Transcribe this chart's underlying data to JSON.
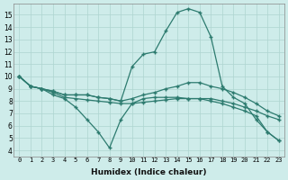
{
  "xlabel": "Humidex (Indice chaleur)",
  "background_color": "#ceecea",
  "grid_color": "#aed4d0",
  "line_color": "#2d7b6f",
  "xlim": [
    -0.5,
    23.5
  ],
  "ylim": [
    3.5,
    15.9
  ],
  "xticks": [
    0,
    1,
    2,
    3,
    4,
    5,
    6,
    7,
    8,
    9,
    10,
    11,
    12,
    13,
    14,
    15,
    16,
    17,
    18,
    19,
    20,
    21,
    22,
    23
  ],
  "yticks": [
    4,
    5,
    6,
    7,
    8,
    9,
    10,
    11,
    12,
    13,
    14,
    15
  ],
  "curve_peak_x": [
    0,
    1,
    2,
    3,
    4,
    5,
    6,
    7,
    8,
    9,
    10,
    11,
    12,
    13,
    14,
    15,
    16,
    17,
    18,
    19,
    20,
    21,
    22,
    23
  ],
  "curve_peak_y": [
    10.0,
    9.2,
    9.0,
    8.8,
    8.5,
    8.5,
    8.5,
    8.3,
    8.2,
    8.0,
    10.8,
    11.8,
    12.0,
    13.7,
    15.2,
    15.5,
    15.2,
    13.2,
    9.2,
    8.3,
    7.8,
    6.5,
    5.5,
    4.8
  ],
  "curve_flat_high_x": [
    0,
    1,
    2,
    3,
    4,
    5,
    6,
    7,
    8,
    9,
    10,
    11,
    12,
    13,
    14,
    15,
    16,
    17,
    18,
    19,
    20,
    21,
    22,
    23
  ],
  "curve_flat_high_y": [
    10.0,
    9.2,
    9.0,
    8.8,
    8.5,
    8.5,
    8.5,
    8.3,
    8.2,
    8.0,
    8.2,
    8.5,
    8.7,
    9.0,
    9.2,
    9.5,
    9.5,
    9.2,
    9.0,
    8.7,
    8.3,
    7.8,
    7.2,
    6.8
  ],
  "curve_flat_low_x": [
    0,
    1,
    2,
    3,
    4,
    5,
    6,
    7,
    8,
    9,
    10,
    11,
    12,
    13,
    14,
    15,
    16,
    17,
    18,
    19,
    20,
    21,
    22,
    23
  ],
  "curve_flat_low_y": [
    10.0,
    9.2,
    9.0,
    8.7,
    8.3,
    8.2,
    8.1,
    8.0,
    7.9,
    7.8,
    7.8,
    7.9,
    8.0,
    8.1,
    8.2,
    8.2,
    8.2,
    8.2,
    8.0,
    7.8,
    7.5,
    7.2,
    6.8,
    6.5
  ],
  "curve_bottom_x": [
    0,
    1,
    2,
    3,
    4,
    5,
    6,
    7,
    8,
    9,
    10,
    11,
    12,
    13,
    14,
    15,
    16,
    17,
    18,
    19,
    20,
    21,
    22,
    23
  ],
  "curve_bottom_y": [
    10.0,
    9.2,
    9.0,
    8.5,
    8.2,
    7.5,
    6.5,
    5.5,
    4.2,
    6.5,
    7.8,
    8.2,
    8.3,
    8.3,
    8.3,
    8.2,
    8.2,
    8.0,
    7.8,
    7.5,
    7.2,
    6.8,
    5.5,
    4.8
  ]
}
